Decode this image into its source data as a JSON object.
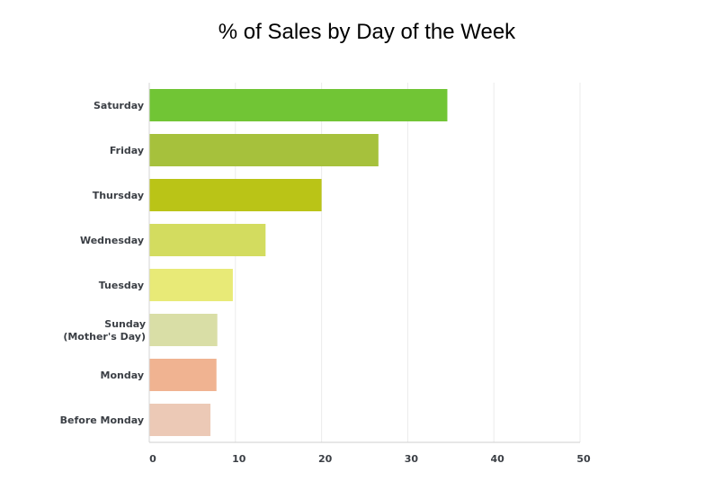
{
  "chart_data": {
    "type": "bar",
    "orientation": "horizontal",
    "title": "% of Sales by Day of the Week",
    "xlabel": "",
    "ylabel": "",
    "xlim": [
      0,
      50
    ],
    "x_ticks": [
      0,
      10,
      20,
      30,
      40,
      50
    ],
    "grid": "vertical",
    "categories": [
      [
        "Saturday"
      ],
      [
        "Friday"
      ],
      [
        "Thursday"
      ],
      [
        "Wednesday"
      ],
      [
        "Tuesday"
      ],
      [
        "Sunday",
        "(Mother's Day)"
      ],
      [
        "Monday"
      ],
      [
        "Before Monday"
      ]
    ],
    "values": [
      34.6,
      26.6,
      20.0,
      13.5,
      9.7,
      7.9,
      7.8,
      7.1
    ],
    "colors": [
      "#71c535",
      "#a6c13c",
      "#bac417",
      "#d3dc5f",
      "#e8ea77",
      "#d9dea6",
      "#f0b391",
      "#ecc9b6"
    ]
  }
}
